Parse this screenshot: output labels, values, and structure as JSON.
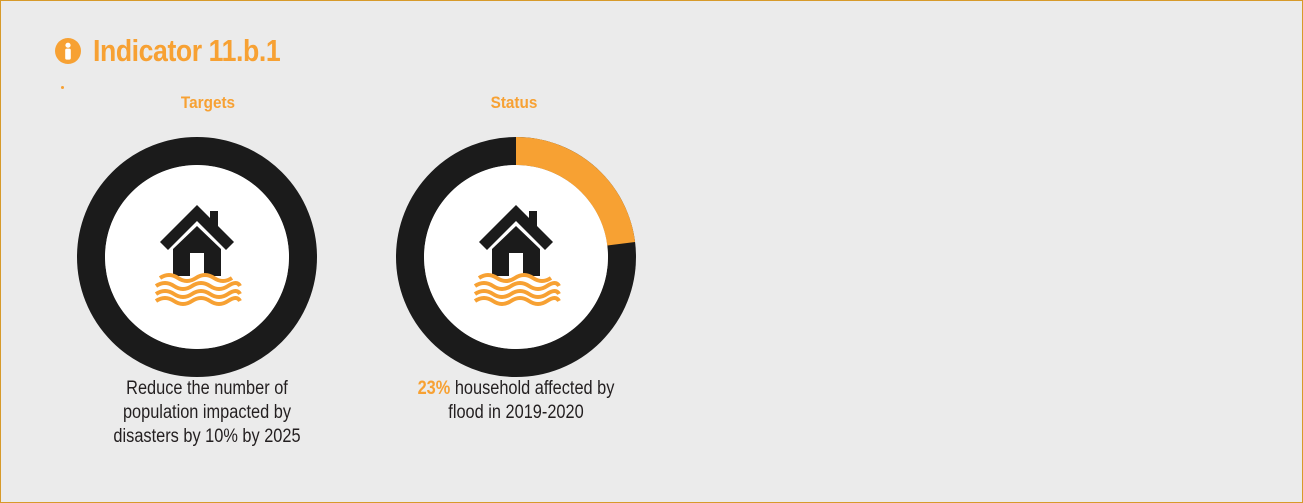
{
  "header": {
    "title": "Indicator 11.b.1",
    "icon": "info-person-icon"
  },
  "colors": {
    "accent": "#f7a133",
    "ring": "#1b1b1b",
    "background": "#ebebeb",
    "border": "#d79a2a",
    "text": "#231f20"
  },
  "targets": {
    "label": "Targets",
    "icon": "flooded-house-icon",
    "caption": "Reduce the number of population impacted by disasters by 10% by 2025"
  },
  "status": {
    "label": "Status",
    "icon": "flooded-house-icon",
    "caption_value": "23%",
    "caption_text": " household affected by flood in 2019-2020"
  },
  "chart_data": {
    "type": "pie",
    "title": "Status",
    "categories": [
      "household affected by flood",
      "other"
    ],
    "values": [
      23,
      77
    ],
    "unit": "%",
    "colors": [
      "#f7a133",
      "#1b1b1b"
    ]
  }
}
